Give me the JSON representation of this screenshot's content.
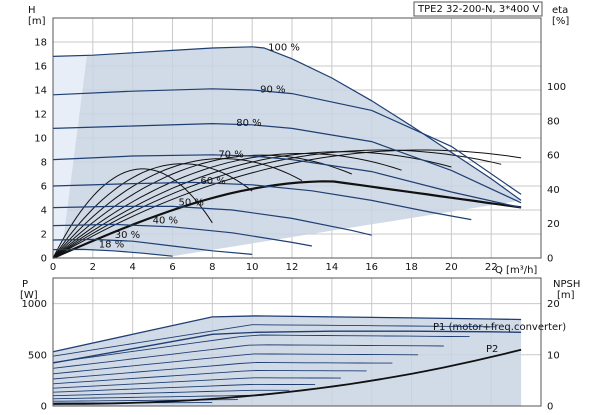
{
  "title": "TPE2 32-200-N, 3*400 V",
  "colors": {
    "area": "#c9d4e3",
    "curve": "#1f3f73",
    "eta": "#111111",
    "grid": "#c9c9c9"
  },
  "chart_data": [
    {
      "type": "line",
      "name": "head",
      "ylabel": "H",
      "yunit": "[m]",
      "ylim": [
        0,
        20
      ],
      "yticks": [
        0,
        2,
        4,
        6,
        8,
        10,
        12,
        14,
        16,
        18
      ],
      "y2label": "eta",
      "y2unit": "[%]",
      "y2lim": [
        0,
        140
      ],
      "y2ticks": [
        0,
        20,
        40,
        60,
        80,
        100
      ],
      "xlabel": "Q [m³/h]",
      "xlim": [
        0,
        24.5
      ],
      "xticks": [
        0,
        2,
        4,
        6,
        8,
        10,
        12,
        14,
        16,
        18,
        20,
        22
      ],
      "grid": true,
      "speed_curves": [
        {
          "name": "100 %",
          "x": [
            0,
            2,
            4,
            6,
            8,
            10,
            10.6,
            12,
            14,
            16,
            18,
            20,
            22,
            23.5
          ],
          "y": [
            16.8,
            16.9,
            17.1,
            17.3,
            17.5,
            17.6,
            17.5,
            16.6,
            15.0,
            13.1,
            11.0,
            8.8,
            6.6,
            4.8
          ]
        },
        {
          "name": "90 %",
          "x": [
            0,
            4,
            8,
            10,
            12,
            16,
            20,
            23.5
          ],
          "y": [
            13.6,
            13.9,
            14.1,
            14.0,
            13.7,
            12.3,
            9.3,
            5.3
          ]
        },
        {
          "name": "80 %",
          "x": [
            0,
            4,
            8,
            10,
            12,
            16,
            20,
            23.5
          ],
          "y": [
            10.8,
            11.0,
            11.2,
            11.1,
            10.8,
            9.7,
            7.3,
            4.6
          ]
        },
        {
          "name": "70 %",
          "x": [
            0,
            4,
            8,
            10,
            12,
            16,
            20,
            23.5
          ],
          "y": [
            8.2,
            8.5,
            8.6,
            8.5,
            8.2,
            7.2,
            5.5,
            4.2
          ]
        },
        {
          "name": "60 %",
          "x": [
            0,
            4,
            7,
            10,
            13,
            16,
            19,
            21
          ],
          "y": [
            6.0,
            6.2,
            6.3,
            6.1,
            5.6,
            4.8,
            3.8,
            3.2
          ]
        },
        {
          "name": "50 %",
          "x": [
            0,
            3,
            6,
            9,
            12,
            15,
            16
          ],
          "y": [
            4.2,
            4.3,
            4.3,
            4.0,
            3.3,
            2.3,
            1.9
          ]
        },
        {
          "name": "40 %",
          "x": [
            0,
            3,
            6,
            9,
            12,
            13
          ],
          "y": [
            2.7,
            2.8,
            2.6,
            2.1,
            1.3,
            1.0
          ]
        },
        {
          "name": "30 %",
          "x": [
            0,
            2,
            4,
            6,
            8,
            10
          ],
          "y": [
            1.5,
            1.55,
            1.4,
            1.0,
            0.6,
            0.3
          ]
        },
        {
          "name": "18 %",
          "x": [
            0,
            1.5,
            3,
            4.5,
            6
          ],
          "y": [
            0.7,
            0.72,
            0.6,
            0.4,
            0.15
          ]
        }
      ],
      "eta_curves": [
        {
          "peak_q": 4.5,
          "peak_eta": 52,
          "end_q": 8
        },
        {
          "peak_q": 6.5,
          "peak_eta": 55,
          "end_q": 10
        },
        {
          "peak_q": 8.5,
          "peak_eta": 58,
          "end_q": 12.5
        },
        {
          "peak_q": 10.5,
          "peak_eta": 60,
          "end_q": 15
        },
        {
          "peak_q": 12.5,
          "peak_eta": 61,
          "end_q": 17.5
        },
        {
          "peak_q": 14.5,
          "peak_eta": 62,
          "end_q": 20
        },
        {
          "peak_q": 16.5,
          "peak_eta": 63,
          "end_q": 22.5
        },
        {
          "peak_q": 18.5,
          "peak_eta": 63,
          "end_q": 23.5
        }
      ]
    },
    {
      "type": "area",
      "name": "power",
      "ylabel": "P",
      "yunit": "[W]",
      "ylim": [
        0,
        1250
      ],
      "yticks": [
        0,
        500,
        1000
      ],
      "y2label": "NPSH",
      "y2unit": "[m]",
      "y2lim": [
        0,
        25
      ],
      "y2ticks": [
        0,
        10,
        20
      ],
      "xlim": [
        0,
        24.5
      ],
      "grid": true,
      "series": [
        {
          "name": "P1 (motor+freq.converter)",
          "x": [
            0,
            4,
            8,
            10.2,
            14,
            18,
            22,
            23.5
          ],
          "y": [
            530,
            700,
            870,
            880,
            870,
            860,
            850,
            845
          ]
        },
        {
          "name": "P2",
          "x": [
            0,
            4,
            8,
            10.2,
            14,
            18,
            22,
            23.5
          ],
          "y": [
            420,
            560,
            700,
            720,
            730,
            730,
            725,
            720
          ]
        }
      ]
    }
  ]
}
